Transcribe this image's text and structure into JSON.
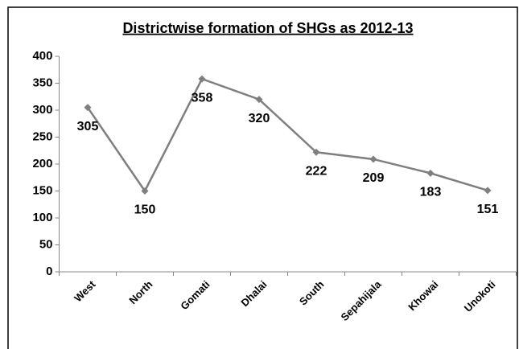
{
  "chart_data": {
    "type": "line",
    "title": "Districtwise formation of SHGs as 2012-13",
    "categories": [
      "West",
      "North",
      "Gomati",
      "Dhalai",
      "South",
      "Sepahijala",
      "Khowai",
      "Unokoti"
    ],
    "values": [
      305,
      150,
      358,
      320,
      222,
      209,
      183,
      151
    ],
    "color": "#7f7f7f",
    "ylim": [
      0,
      400
    ],
    "yticks": [
      0,
      50,
      100,
      150,
      200,
      250,
      300,
      350,
      400
    ],
    "grid": false
  }
}
